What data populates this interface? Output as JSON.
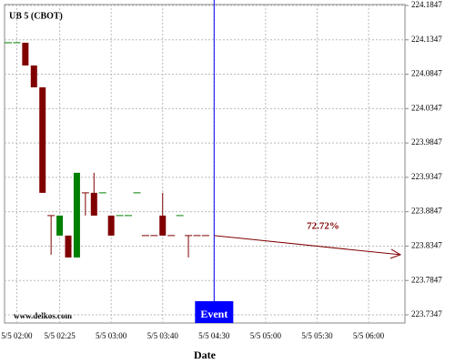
{
  "chart_data": {
    "type": "candlestick",
    "title": "UB 5 (CBOT)",
    "watermark": "www.delkos.com",
    "x_label": "Date",
    "categories": [
      null,
      "5/5 02:00",
      null,
      null,
      null,
      null,
      "5/5 02:25",
      null,
      null,
      null,
      null,
      null,
      "5/5 03:00",
      null,
      null,
      null,
      null,
      null,
      "5/5 03:40",
      null,
      null,
      null,
      null,
      null,
      "5/5 04:30",
      null,
      null,
      null,
      null,
      null,
      "5/5 05:00",
      null,
      null,
      null,
      null,
      null,
      "5/5 05:30",
      null,
      null,
      null,
      null,
      null,
      "5/5 06:00",
      null,
      null,
      null,
      null
    ],
    "series": [
      {
        "up_color": "#008000",
        "down_color": "#800000",
        "open": [
          224.1305,
          224.1305,
          224.1305,
          224.0974,
          224.0656,
          223.8791,
          223.85,
          223.85,
          223.8182,
          223.9122,
          223.9122,
          223.9122,
          223.8791,
          223.8791,
          223.8791,
          223.9122,
          223.85,
          223.85,
          223.8791,
          223.85,
          223.8791,
          223.85,
          223.85,
          223.85,
          null,
          null,
          null,
          null,
          null,
          null,
          null,
          null,
          null,
          null,
          null,
          null,
          null,
          null,
          null,
          null,
          null,
          null,
          null,
          null,
          null,
          null,
          null
        ],
        "high": [
          224.1305,
          224.1305,
          224.1305,
          224.0974,
          224.0656,
          223.8791,
          223.8791,
          223.85,
          223.9413,
          223.9122,
          223.9413,
          223.9122,
          223.8791,
          223.8791,
          223.8791,
          223.9122,
          223.85,
          223.85,
          223.9122,
          223.85,
          223.8791,
          223.85,
          223.85,
          223.85,
          null,
          null,
          null,
          null,
          null,
          null,
          null,
          null,
          null,
          null,
          null,
          null,
          null,
          null,
          null,
          null,
          null,
          null,
          null,
          null,
          null,
          null,
          null
        ],
        "low": [
          224.1305,
          224.1305,
          224.0974,
          224.0656,
          223.9122,
          223.8222,
          223.85,
          223.8182,
          223.8182,
          223.8791,
          223.8791,
          223.9122,
          223.85,
          223.8791,
          223.8791,
          223.9122,
          223.85,
          223.85,
          223.85,
          223.85,
          223.8791,
          223.8182,
          223.85,
          223.85,
          null,
          null,
          null,
          null,
          null,
          null,
          null,
          null,
          null,
          null,
          null,
          null,
          null,
          null,
          null,
          null,
          null,
          null,
          null,
          null,
          null,
          null,
          null
        ],
        "close": [
          224.1305,
          224.1305,
          224.0974,
          224.0656,
          223.9122,
          223.8791,
          223.8791,
          223.8182,
          223.9413,
          223.9122,
          223.8791,
          223.9122,
          223.85,
          223.8791,
          223.8791,
          223.9122,
          223.85,
          223.85,
          223.85,
          223.85,
          223.8791,
          223.85,
          223.85,
          223.85,
          null,
          null,
          null,
          null,
          null,
          null,
          null,
          null,
          null,
          null,
          null,
          null,
          null,
          null,
          null,
          null,
          null,
          null,
          null,
          null,
          null,
          null,
          null
        ]
      }
    ],
    "ylim": [
      223.7228,
      224.186
    ],
    "yticks": [
      223.7347,
      223.7847,
      223.8347,
      223.8847,
      223.9347,
      223.9847,
      224.0347,
      224.0847,
      224.1347,
      224.1847
    ],
    "grid": true,
    "event": {
      "label": "Event",
      "category": "5/5 04:30",
      "color": "#0000ff"
    },
    "projection": {
      "label": "72.72%",
      "start": 223.85,
      "end": 223.8222,
      "color": "#800000"
    }
  }
}
